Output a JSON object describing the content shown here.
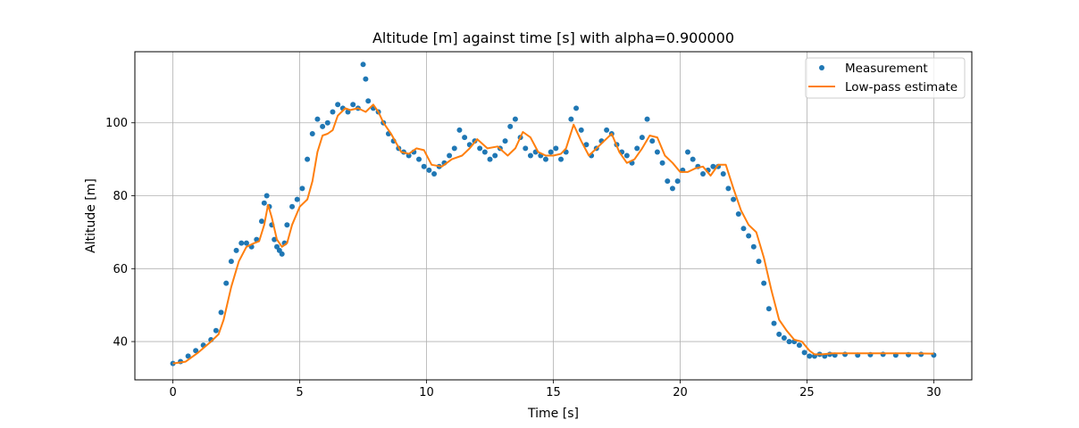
{
  "chart_data": {
    "type": "scatter",
    "title": "Altitude [m] against time [s] with alpha=0.900000",
    "xlabel": "Time [s]",
    "ylabel": "Altitude [m]",
    "xlim": [
      -1.5,
      31.5
    ],
    "ylim": [
      29.5,
      119.5
    ],
    "xticks": [
      0,
      5,
      10,
      15,
      20,
      25,
      30
    ],
    "yticks": [
      40,
      60,
      80,
      100
    ],
    "grid": true,
    "legend_position": "top-right",
    "colors": {
      "measurement": "#1f77b4",
      "estimate": "#ff7f0e",
      "grid": "#b0b0b0"
    },
    "series": [
      {
        "name": "Measurement",
        "kind": "points",
        "x": [
          0,
          0.3,
          0.6,
          0.9,
          1.2,
          1.5,
          1.7,
          1.9,
          2.1,
          2.3,
          2.5,
          2.7,
          2.9,
          3.1,
          3.3,
          3.5,
          3.6,
          3.7,
          3.8,
          3.9,
          4.0,
          4.1,
          4.2,
          4.3,
          4.4,
          4.5,
          4.7,
          4.9,
          5.1,
          5.3,
          5.5,
          5.7,
          5.9,
          6.1,
          6.3,
          6.5,
          6.7,
          6.9,
          7.1,
          7.3,
          7.5,
          7.6,
          7.7,
          7.9,
          8.1,
          8.3,
          8.5,
          8.7,
          8.9,
          9.1,
          9.3,
          9.5,
          9.7,
          9.9,
          10.1,
          10.3,
          10.5,
          10.7,
          10.9,
          11.1,
          11.3,
          11.5,
          11.7,
          11.9,
          12.1,
          12.3,
          12.5,
          12.7,
          12.9,
          13.1,
          13.3,
          13.5,
          13.7,
          13.9,
          14.1,
          14.3,
          14.5,
          14.7,
          14.9,
          15.1,
          15.3,
          15.5,
          15.7,
          15.9,
          16.1,
          16.3,
          16.5,
          16.7,
          16.9,
          17.1,
          17.3,
          17.5,
          17.7,
          17.9,
          18.1,
          18.3,
          18.5,
          18.7,
          18.9,
          19.1,
          19.3,
          19.5,
          19.7,
          19.9,
          20.1,
          20.3,
          20.5,
          20.7,
          20.9,
          21.1,
          21.3,
          21.5,
          21.7,
          21.9,
          22.1,
          22.3,
          22.5,
          22.7,
          22.9,
          23.1,
          23.3,
          23.5,
          23.7,
          23.9,
          24.1,
          24.3,
          24.5,
          24.7,
          24.9,
          25.1,
          25.3,
          25.5,
          25.7,
          25.9,
          26.1,
          26.5,
          27,
          27.5,
          28,
          28.5,
          29,
          29.5,
          30
        ],
        "y": [
          34,
          34.5,
          36,
          37.5,
          39,
          40.5,
          43,
          48,
          56,
          62,
          65,
          67,
          67,
          66,
          68,
          73,
          78,
          80,
          77,
          72,
          68,
          66,
          65,
          64,
          67,
          72,
          77,
          79,
          82,
          90,
          97,
          101,
          99,
          100,
          103,
          105,
          104,
          103,
          105,
          104,
          116,
          112,
          106,
          104,
          103,
          100,
          97,
          95,
          93,
          92,
          91,
          92,
          90,
          88,
          87,
          86,
          88,
          89,
          91,
          93,
          98,
          96,
          94,
          95,
          93,
          92,
          90,
          91,
          93,
          95,
          99,
          101,
          96,
          93,
          91,
          92,
          91,
          90,
          92,
          93,
          90,
          92,
          101,
          104,
          98,
          94,
          91,
          93,
          95,
          98,
          97,
          94,
          92,
          91,
          89,
          93,
          96,
          101,
          95,
          92,
          89,
          84,
          82,
          84,
          87,
          92,
          90,
          88,
          86,
          87,
          88,
          88,
          86,
          82,
          79,
          75,
          71,
          69,
          66,
          62,
          56,
          49,
          45,
          42,
          41,
          40,
          40,
          39,
          37,
          36,
          36,
          36.5,
          36,
          36.5,
          36.3,
          36.5,
          36.3,
          36.4,
          36.5,
          36.3,
          36.4,
          36.5,
          36.3
        ]
      },
      {
        "name": "Low-pass estimate",
        "kind": "line",
        "x": [
          0,
          0.5,
          1.0,
          1.5,
          1.8,
          2.0,
          2.3,
          2.6,
          2.9,
          3.2,
          3.4,
          3.6,
          3.75,
          3.9,
          4.1,
          4.3,
          4.5,
          4.7,
          5.0,
          5.3,
          5.5,
          5.7,
          5.9,
          6.1,
          6.3,
          6.5,
          6.8,
          7.0,
          7.3,
          7.6,
          7.9,
          8.1,
          8.3,
          8.6,
          9.0,
          9.3,
          9.6,
          9.9,
          10.2,
          10.6,
          11.0,
          11.4,
          11.7,
          12.0,
          12.4,
          12.8,
          13.2,
          13.5,
          13.8,
          14.1,
          14.4,
          14.7,
          15.0,
          15.3,
          15.5,
          15.8,
          16.1,
          16.4,
          16.7,
          17.0,
          17.3,
          17.6,
          17.9,
          18.2,
          18.5,
          18.8,
          19.1,
          19.4,
          19.7,
          20.0,
          20.3,
          20.6,
          20.9,
          21.2,
          21.5,
          21.8,
          22.1,
          22.4,
          22.7,
          23.0,
          23.3,
          23.6,
          23.9,
          24.2,
          24.5,
          24.8,
          25.1,
          25.3,
          25.6,
          26,
          27,
          28,
          29,
          30
        ],
        "y": [
          34,
          34.5,
          37,
          40,
          42,
          46,
          55,
          62,
          66,
          67,
          67.5,
          72,
          77.5,
          74,
          68,
          66,
          67,
          72,
          77,
          79,
          84,
          92,
          96.5,
          97,
          98,
          102,
          104,
          103.5,
          104,
          103,
          105,
          103,
          100,
          97,
          92,
          91.5,
          93,
          92.5,
          88.5,
          88,
          90,
          91,
          93,
          95.5,
          93,
          93.5,
          91,
          93,
          97.5,
          96,
          92,
          91,
          91,
          91.5,
          93,
          99.5,
          95,
          91,
          93,
          95,
          97,
          92,
          89,
          90,
          93,
          96.5,
          96,
          91,
          89,
          86.5,
          86.5,
          87.5,
          88,
          85.5,
          88.5,
          88.5,
          82,
          76,
          72,
          70,
          63,
          54,
          46,
          43,
          40.5,
          40,
          37.5,
          36.5,
          36.5,
          36.8,
          36.8,
          36.8,
          36.8,
          36.7
        ]
      }
    ]
  }
}
